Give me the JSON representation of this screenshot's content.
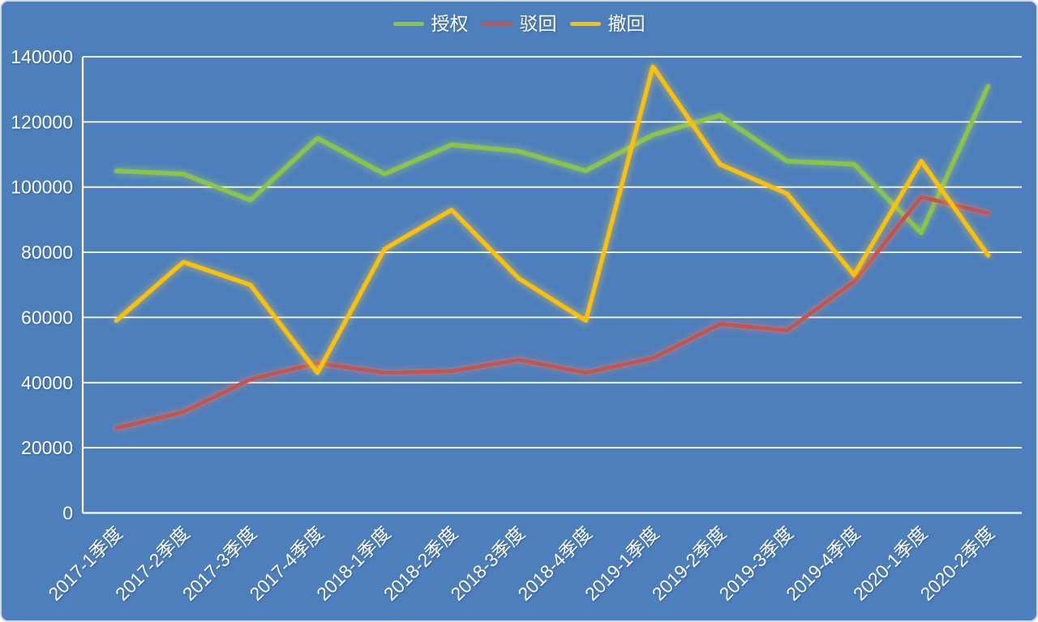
{
  "frame": {
    "background_color": "#4d7fbc",
    "border_color": "#d8d8d8",
    "text_color": "#ffffff",
    "gridline_color": "#ffffff"
  },
  "legend": {
    "position": "top-center",
    "items": [
      {
        "key": "granted",
        "label": "授权",
        "color": "#8cc63f"
      },
      {
        "key": "rejected",
        "label": "驳回",
        "color": "#c4544c"
      },
      {
        "key": "withdrawn",
        "label": "撤回",
        "color": "#ffc000"
      }
    ]
  },
  "chart_data": {
    "type": "line",
    "title": "",
    "xlabel": "",
    "ylabel": "",
    "grid": true,
    "legend_position": "top-center",
    "x_label_rotation": -45,
    "ylim": [
      0,
      140000
    ],
    "ytick_interval": 20000,
    "ytick_labels": [
      "0",
      "20000",
      "40000",
      "60000",
      "80000",
      "100000",
      "120000",
      "140000"
    ],
    "categories": [
      "2017-1季度",
      "2017-2季度",
      "2017-3季度",
      "2017-4季度",
      "2018-1季度",
      "2018-2季度",
      "2018-3季度",
      "2018-4季度",
      "2019-1季度",
      "2019-2季度",
      "2019-3季度",
      "2019-4季度",
      "2020-1季度",
      "2020-2季度"
    ],
    "series": [
      {
        "key": "granted",
        "name": "授权",
        "color": "#8cc63f",
        "values": [
          105000,
          104000,
          96000,
          115000,
          104000,
          113000,
          111000,
          105000,
          116000,
          122000,
          108000,
          107000,
          86000,
          131000
        ]
      },
      {
        "key": "rejected",
        "name": "驳回",
        "color": "#c4544c",
        "values": [
          26000,
          31000,
          41000,
          46000,
          43000,
          43500,
          47000,
          43000,
          47500,
          58000,
          56000,
          71000,
          97000,
          92000
        ]
      },
      {
        "key": "withdrawn",
        "name": "撤回",
        "color": "#ffc000",
        "values": [
          59000,
          77000,
          70000,
          43000,
          81000,
          93000,
          72000,
          59000,
          137000,
          107000,
          98000,
          73000,
          108000,
          79000
        ]
      }
    ]
  }
}
